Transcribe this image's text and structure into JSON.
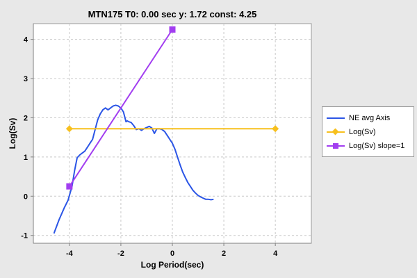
{
  "chart_data": {
    "type": "line",
    "title": "MTN175 T0: 0.00 sec  y: 1.72 const: 4.25",
    "xlabel": "Log Period(sec)",
    "ylabel": "Log(Sv)",
    "xlim": [
      -5.4,
      5.4
    ],
    "ylim": [
      -1.2,
      4.4
    ],
    "xticks": [
      -4,
      -2,
      0,
      2,
      4
    ],
    "yticks": [
      -1,
      0,
      1,
      2,
      3,
      4
    ],
    "grid": true,
    "legend_position": "right",
    "series": [
      {
        "name": "NE avg Axis",
        "color": "#2b55e6",
        "marker": "none",
        "x": [
          -4.6,
          -4.4,
          -4.2,
          -4.05,
          -3.9,
          -3.8,
          -3.7,
          -3.6,
          -3.5,
          -3.4,
          -3.3,
          -3.2,
          -3.1,
          -3.0,
          -2.9,
          -2.8,
          -2.7,
          -2.6,
          -2.5,
          -2.4,
          -2.3,
          -2.2,
          -2.1,
          -2.0,
          -1.9,
          -1.8,
          -1.75,
          -1.7,
          -1.6,
          -1.5,
          -1.4,
          -1.3,
          -1.2,
          -1.1,
          -1.0,
          -0.9,
          -0.8,
          -0.7,
          -0.6,
          -0.5,
          -0.4,
          -0.3,
          -0.2,
          -0.1,
          0.0,
          0.1,
          0.2,
          0.3,
          0.4,
          0.5,
          0.6,
          0.7,
          0.8,
          0.9,
          1.0,
          1.1,
          1.2,
          1.3,
          1.4,
          1.5,
          1.6
        ],
        "y": [
          -0.95,
          -0.6,
          -0.3,
          -0.1,
          0.25,
          0.65,
          0.98,
          1.05,
          1.1,
          1.15,
          1.25,
          1.35,
          1.45,
          1.7,
          1.95,
          2.1,
          2.2,
          2.25,
          2.2,
          2.25,
          2.3,
          2.32,
          2.3,
          2.25,
          2.15,
          1.9,
          1.92,
          1.9,
          1.88,
          1.8,
          1.7,
          1.72,
          1.68,
          1.72,
          1.75,
          1.78,
          1.74,
          1.6,
          1.72,
          1.72,
          1.7,
          1.65,
          1.55,
          1.45,
          1.35,
          1.2,
          1.0,
          0.8,
          0.62,
          0.48,
          0.35,
          0.25,
          0.15,
          0.08,
          0.02,
          -0.02,
          -0.05,
          -0.08,
          -0.08,
          -0.09,
          -0.08
        ]
      },
      {
        "name": "Log(Sv)",
        "color": "#f7c01e",
        "marker": "diamond",
        "x": [
          -4,
          4
        ],
        "y": [
          1.72,
          1.72
        ]
      },
      {
        "name": "Log(Sv) slope=1",
        "color": "#a23ef0",
        "marker": "square",
        "x": [
          -4,
          0
        ],
        "y": [
          0.25,
          4.25
        ]
      }
    ]
  }
}
